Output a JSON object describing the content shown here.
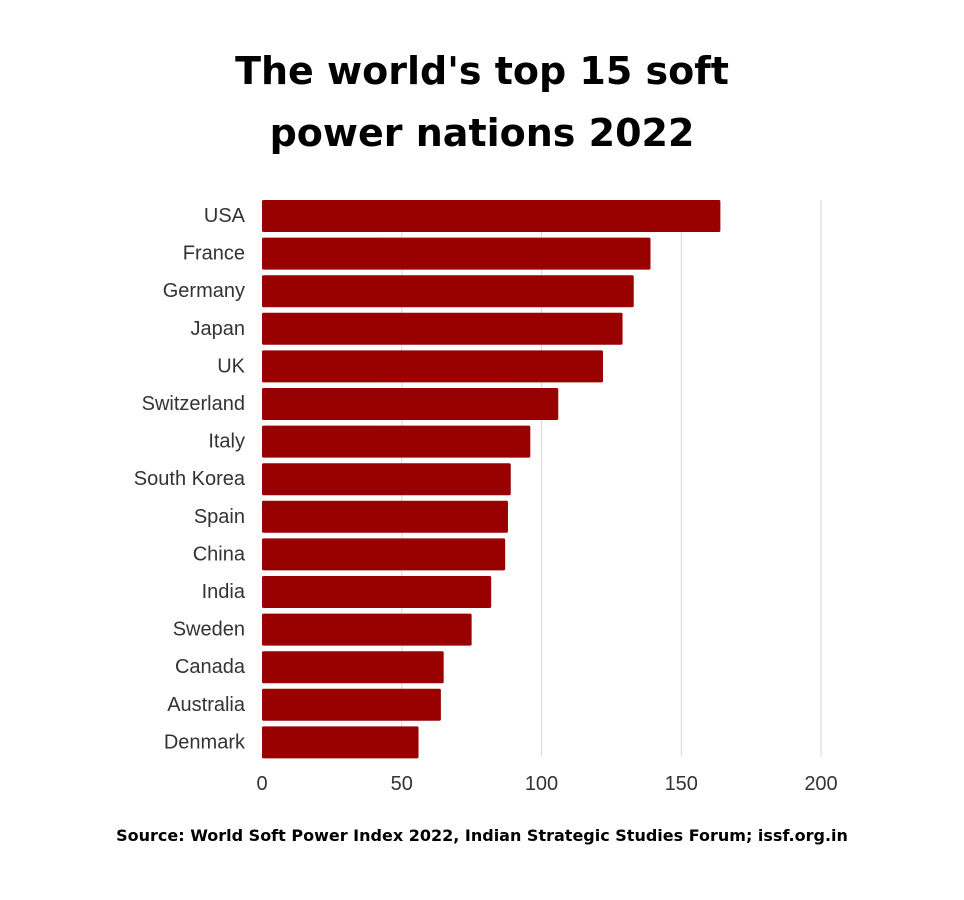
{
  "title_lines": [
    "The world's top 15 soft",
    "power nations 2022"
  ],
  "source": "Source: World Soft Power Index 2022, Indian Strategic Studies Forum; issf.org.in",
  "colors": {
    "bar": "#990000",
    "grid": "#d9d9d9",
    "text": "#333333"
  },
  "chart_data": {
    "type": "bar",
    "orientation": "horizontal",
    "title": "The world's top 15 soft power nations 2022",
    "categories": [
      "USA",
      "France",
      "Germany",
      "Japan",
      "UK",
      "Switzerland",
      "Italy",
      "South Korea",
      "Spain",
      "China",
      "India",
      "Sweden",
      "Canada",
      "Australia",
      "Denmark"
    ],
    "values": [
      164,
      139,
      133,
      129,
      122,
      106,
      96,
      89,
      88,
      87,
      82,
      75,
      65,
      64,
      56
    ],
    "xlim": [
      0,
      200
    ],
    "xticks": [
      0,
      50,
      100,
      150,
      200
    ],
    "grid": true,
    "legend": "none"
  }
}
